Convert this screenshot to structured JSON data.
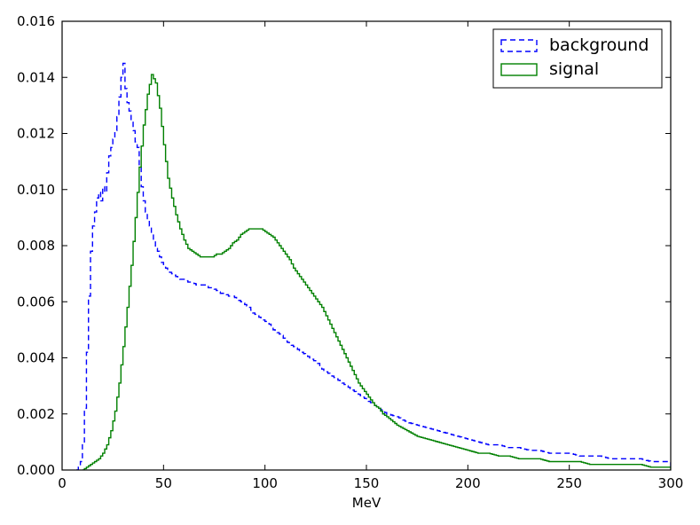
{
  "chart_data": {
    "type": "line",
    "subtype": "step-histogram",
    "title": "",
    "xlabel": "MeV",
    "ylabel": "",
    "xlim": [
      0,
      300
    ],
    "ylim": [
      0,
      0.016
    ],
    "grid": false,
    "legend_position": "top-right",
    "x_ticks": [
      0,
      50,
      100,
      150,
      200,
      250,
      300
    ],
    "x_tick_labels": [
      "0",
      "50",
      "100",
      "150",
      "200",
      "250",
      "300"
    ],
    "y_ticks": [
      0.0,
      0.002,
      0.004,
      0.006,
      0.008,
      0.01,
      0.012,
      0.014,
      0.016
    ],
    "y_tick_labels": [
      "0.000",
      "0.002",
      "0.004",
      "0.006",
      "0.008",
      "0.010",
      "0.012",
      "0.014",
      "0.016"
    ],
    "bin_width": 1,
    "series": [
      {
        "name": "background",
        "color": "#0000ff",
        "linestyle": "dashed",
        "x": [
          7,
          8,
          9,
          10,
          11,
          12,
          13,
          14,
          15,
          16,
          17,
          18,
          19,
          20,
          21,
          22,
          23,
          24,
          25,
          26,
          27,
          28,
          29,
          30,
          31,
          32,
          33,
          34,
          35,
          36,
          37,
          38,
          39,
          40,
          41,
          42,
          43,
          44,
          45,
          46,
          47,
          48,
          49,
          50,
          52,
          54,
          56,
          58,
          60,
          62,
          64,
          66,
          68,
          70,
          72,
          74,
          76,
          78,
          80,
          82,
          84,
          86,
          88,
          90,
          92,
          94,
          96,
          98,
          100,
          102,
          104,
          106,
          108,
          110,
          112,
          114,
          116,
          118,
          120,
          122,
          124,
          126,
          128,
          130,
          132,
          134,
          136,
          138,
          140,
          142,
          144,
          146,
          148,
          150,
          152,
          154,
          156,
          158,
          160,
          165,
          170,
          175,
          180,
          185,
          190,
          195,
          200,
          205,
          210,
          215,
          220,
          225,
          230,
          235,
          240,
          245,
          250,
          255,
          260,
          265,
          270,
          275,
          280,
          285,
          290,
          295,
          299
        ],
        "values": [
          0.0,
          0.0001,
          0.0003,
          0.0009,
          0.0022,
          0.0042,
          0.0062,
          0.0078,
          0.0087,
          0.0092,
          0.0097,
          0.0099,
          0.0096,
          0.0101,
          0.0099,
          0.0106,
          0.0112,
          0.0115,
          0.0118,
          0.0121,
          0.0126,
          0.0133,
          0.014,
          0.0145,
          0.0136,
          0.0131,
          0.0128,
          0.0124,
          0.0121,
          0.0117,
          0.0115,
          0.0108,
          0.0101,
          0.0096,
          0.0092,
          0.0089,
          0.0087,
          0.0084,
          0.0082,
          0.0079,
          0.0078,
          0.0076,
          0.0074,
          0.0073,
          0.0071,
          0.007,
          0.0069,
          0.0068,
          0.0068,
          0.0067,
          0.0067,
          0.0066,
          0.0066,
          0.0066,
          0.0065,
          0.0065,
          0.0064,
          0.0063,
          0.0063,
          0.0062,
          0.0062,
          0.0061,
          0.006,
          0.0059,
          0.0058,
          0.0056,
          0.0055,
          0.0054,
          0.0053,
          0.0052,
          0.005,
          0.0049,
          0.0048,
          0.0046,
          0.0045,
          0.0044,
          0.0043,
          0.0042,
          0.0041,
          0.004,
          0.0039,
          0.0038,
          0.0036,
          0.0035,
          0.0034,
          0.0033,
          0.0032,
          0.0031,
          0.003,
          0.0029,
          0.0028,
          0.0027,
          0.0026,
          0.0025,
          0.0024,
          0.0023,
          0.0022,
          0.0021,
          0.002,
          0.0019,
          0.0017,
          0.0016,
          0.0015,
          0.0014,
          0.0013,
          0.0012,
          0.0011,
          0.001,
          0.0009,
          0.0009,
          0.0008,
          0.0008,
          0.0007,
          0.0007,
          0.0006,
          0.0006,
          0.0006,
          0.0005,
          0.0005,
          0.0005,
          0.0004,
          0.0004,
          0.0004,
          0.0004,
          0.0003,
          0.0003,
          0.0003
        ]
      },
      {
        "name": "signal",
        "color": "#008000",
        "linestyle": "solid",
        "x": [
          10,
          12,
          14,
          16,
          18,
          20,
          22,
          24,
          26,
          28,
          30,
          32,
          34,
          36,
          38,
          40,
          42,
          44,
          46,
          48,
          50,
          52,
          54,
          56,
          58,
          60,
          62,
          64,
          66,
          68,
          70,
          72,
          74,
          76,
          78,
          80,
          82,
          84,
          86,
          88,
          90,
          92,
          94,
          96,
          98,
          100,
          102,
          104,
          106,
          108,
          110,
          112,
          114,
          116,
          118,
          120,
          122,
          124,
          126,
          128,
          130,
          132,
          134,
          136,
          138,
          140,
          142,
          144,
          146,
          148,
          150,
          152,
          154,
          156,
          158,
          160,
          165,
          170,
          175,
          180,
          185,
          190,
          195,
          200,
          205,
          210,
          215,
          220,
          225,
          230,
          235,
          240,
          245,
          250,
          255,
          260,
          265,
          270,
          275,
          280,
          285,
          290,
          295,
          299
        ],
        "values": [
          0.0,
          0.0001,
          0.0002,
          0.0003,
          0.0004,
          0.0006,
          0.0009,
          0.0014,
          0.0021,
          0.0031,
          0.0044,
          0.0058,
          0.0073,
          0.009,
          0.0108,
          0.0123,
          0.0134,
          0.0141,
          0.0138,
          0.0129,
          0.0116,
          0.0104,
          0.0097,
          0.0091,
          0.0086,
          0.0082,
          0.0079,
          0.0078,
          0.0077,
          0.0076,
          0.0076,
          0.0076,
          0.0076,
          0.0077,
          0.0077,
          0.0078,
          0.0079,
          0.0081,
          0.0082,
          0.0084,
          0.0085,
          0.0086,
          0.0086,
          0.0086,
          0.0086,
          0.0085,
          0.0084,
          0.0083,
          0.0081,
          0.0079,
          0.0077,
          0.0075,
          0.0072,
          0.007,
          0.0068,
          0.0066,
          0.0064,
          0.0062,
          0.006,
          0.0058,
          0.0055,
          0.0052,
          0.0049,
          0.0046,
          0.0043,
          0.004,
          0.0037,
          0.0034,
          0.0031,
          0.0029,
          0.0027,
          0.0025,
          0.0023,
          0.0022,
          0.002,
          0.0019,
          0.0016,
          0.0014,
          0.0012,
          0.0011,
          0.001,
          0.0009,
          0.0008,
          0.0007,
          0.0006,
          0.0006,
          0.0005,
          0.0005,
          0.0004,
          0.0004,
          0.0004,
          0.0003,
          0.0003,
          0.0003,
          0.0003,
          0.0002,
          0.0002,
          0.0002,
          0.0002,
          0.0002,
          0.0002,
          0.0001,
          0.0001,
          0.0001
        ]
      }
    ]
  }
}
